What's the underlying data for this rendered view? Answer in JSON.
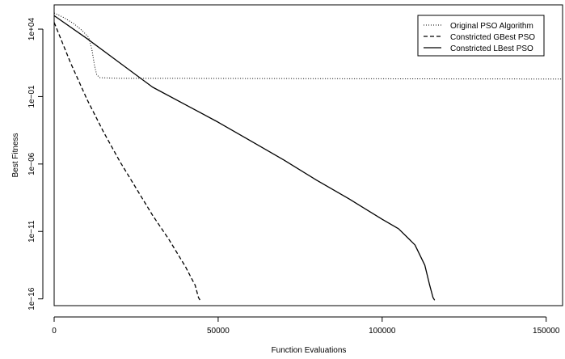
{
  "chart_data": {
    "type": "line",
    "xlabel": "Function Evaluations",
    "ylabel": "Best Fitness",
    "x_scale": "linear",
    "y_scale": "log10",
    "xlim": [
      0,
      155000
    ],
    "ylim_log10": [
      -16.5,
      5.8
    ],
    "x_ticks": [
      0,
      50000,
      100000,
      150000
    ],
    "x_tick_labels": [
      "0",
      "50000",
      "100000",
      "150000"
    ],
    "y_ticks_log10": [
      4,
      -1,
      -6,
      -11,
      -16
    ],
    "y_tick_labels": [
      "1e+04",
      "1e−01",
      "1e−06",
      "1e−11",
      "1e−16"
    ],
    "grid": false,
    "legend_position": "top-right",
    "legend": [
      "Original PSO Algorithm",
      "Constricted GBest PSO",
      "Constricted LBest PSO"
    ],
    "series": [
      {
        "name": "Original PSO Algorithm",
        "line_style": "dotted",
        "points_log10": [
          [
            0,
            5.2
          ],
          [
            3000,
            4.85
          ],
          [
            6000,
            4.4
          ],
          [
            8500,
            3.9
          ],
          [
            10500,
            3.4
          ],
          [
            11500,
            2.5
          ],
          [
            12300,
            1.3
          ],
          [
            13000,
            0.6
          ],
          [
            14000,
            0.4
          ],
          [
            20000,
            0.35
          ],
          [
            40000,
            0.35
          ],
          [
            80000,
            0.33
          ],
          [
            120000,
            0.31
          ],
          [
            155000,
            0.3
          ]
        ]
      },
      {
        "name": "Constricted GBest PSO",
        "line_style": "dashed",
        "points_log10": [
          [
            0,
            4.5
          ],
          [
            5000,
            1.5
          ],
          [
            10000,
            -1.2
          ],
          [
            15000,
            -3.6
          ],
          [
            20000,
            -5.8
          ],
          [
            25000,
            -7.8
          ],
          [
            30000,
            -9.8
          ],
          [
            35000,
            -11.6
          ],
          [
            40000,
            -13.6
          ],
          [
            43000,
            -15.0
          ],
          [
            44000,
            -15.9
          ],
          [
            44500,
            -16.1
          ],
          [
            45000,
            -16.1
          ]
        ]
      },
      {
        "name": "Constricted LBest PSO",
        "line_style": "solid",
        "points_log10": [
          [
            0,
            5.0
          ],
          [
            10000,
            3.3
          ],
          [
            20000,
            1.5
          ],
          [
            30000,
            -0.3
          ],
          [
            40000,
            -1.6
          ],
          [
            50000,
            -2.9
          ],
          [
            60000,
            -4.3
          ],
          [
            70000,
            -5.7
          ],
          [
            80000,
            -7.2
          ],
          [
            90000,
            -8.6
          ],
          [
            100000,
            -10.1
          ],
          [
            105000,
            -10.8
          ],
          [
            110000,
            -12.0
          ],
          [
            113000,
            -13.5
          ],
          [
            114500,
            -15.0
          ],
          [
            115500,
            -15.9
          ],
          [
            116000,
            -16.1
          ]
        ]
      }
    ]
  }
}
